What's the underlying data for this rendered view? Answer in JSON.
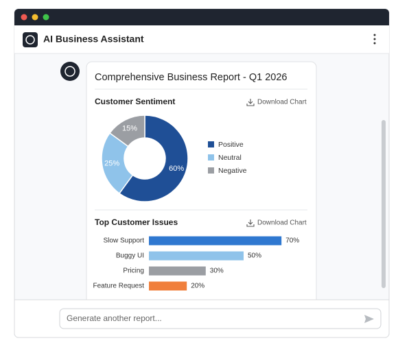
{
  "window": {
    "title": "AI Business Assistant"
  },
  "report": {
    "title": "Comprehensive Business Report - Q1 2026",
    "charts": [
      {
        "type": "pie",
        "title": "Customer Sentiment",
        "action": "Download Chart",
        "categories": [
          "Positive",
          "Neutral",
          "Negative"
        ],
        "values": [
          60,
          25,
          15
        ],
        "value_labels": [
          "60%",
          "25%",
          "15%"
        ],
        "colors": [
          "#1f4f96",
          "#8fc3ea",
          "#9b9ea3"
        ]
      },
      {
        "type": "bar",
        "title": "Top Customer Issues",
        "action": "Download Chart",
        "categories": [
          "Slow Support",
          "Buggy UI",
          "Pricing",
          "Feature Request"
        ],
        "values": [
          70,
          50,
          30,
          20
        ],
        "value_labels": [
          "70%",
          "50%",
          "30%",
          "20%"
        ],
        "colors": [
          "#2f78d0",
          "#8fc3ea",
          "#9b9ea3",
          "#f07f3c"
        ]
      }
    ]
  },
  "input": {
    "placeholder": "Generate another report..."
  }
}
